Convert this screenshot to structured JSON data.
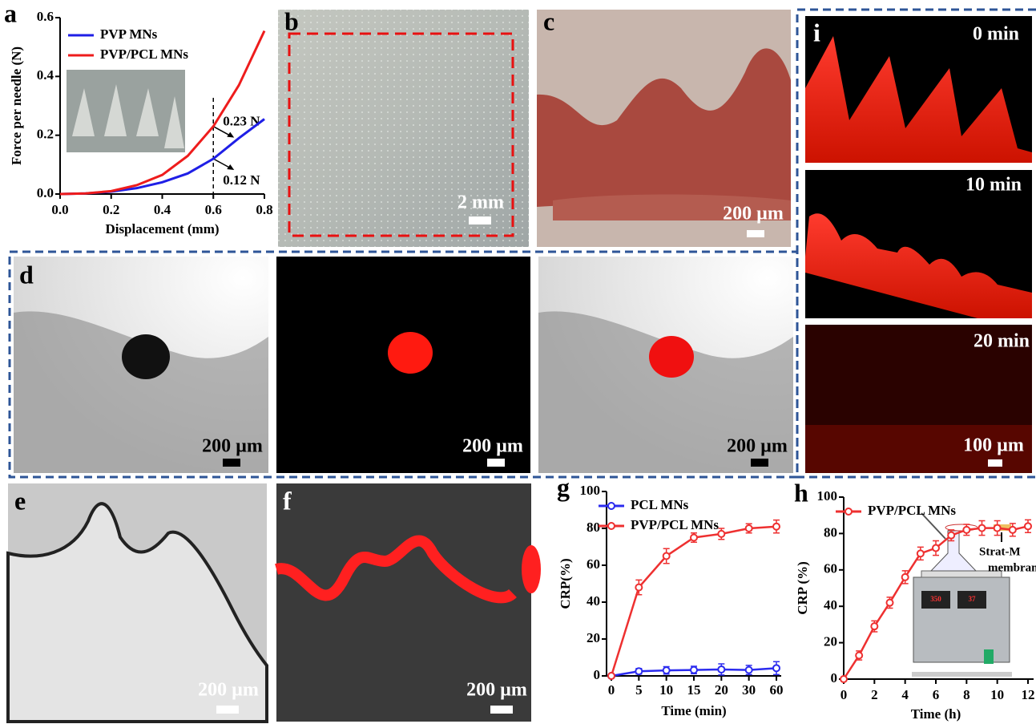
{
  "chart_data": [
    {
      "type": "line",
      "label": "a",
      "xlabel": "Displacement (mm)",
      "ylabel": "Force per needle (N)",
      "x": [
        0,
        0.1,
        0.2,
        0.3,
        0.4,
        0.5,
        0.6,
        0.7,
        0.8
      ],
      "xlim": [
        0,
        0.8
      ],
      "ylim": [
        0,
        0.6
      ],
      "xticks": [
        {
          "value": 0,
          "label": "0.0"
        },
        0.2,
        0.4,
        0.6,
        0.8
      ],
      "yticks": [
        {
          "value": 0,
          "label": "0.0"
        },
        0.2,
        0.4,
        0.6
      ],
      "series": [
        {
          "name": "PVP MNs",
          "color": "#1f1fe6",
          "values": [
            0,
            0.002,
            0.008,
            0.02,
            0.04,
            0.07,
            0.12,
            0.19,
            0.255
          ]
        },
        {
          "name": "PVP/PCL MNs",
          "color": "#ee1c1c",
          "values": [
            0,
            0.002,
            0.01,
            0.03,
            0.065,
            0.13,
            0.23,
            0.37,
            0.555
          ]
        }
      ],
      "vline": 0.6,
      "annotations": [
        {
          "text": "0.23 N",
          "y": 0.23
        },
        {
          "text": "0.12 N",
          "y": 0.12
        }
      ],
      "markers": false,
      "legend": "upper left"
    },
    {
      "type": "line",
      "label": "g",
      "xlabel": "Time (min)",
      "ylabel": "CRP(%)",
      "categories": [
        "0",
        "5",
        "10",
        "15",
        "20",
        "30",
        "60"
      ],
      "ylim": [
        0,
        100
      ],
      "yticks": [
        0,
        20,
        40,
        60,
        80,
        100
      ],
      "series": [
        {
          "name": "PCL MNs",
          "color": "#2b2bef",
          "values": [
            0,
            2.5,
            3,
            3.2,
            3.5,
            3.2,
            4.2
          ],
          "errors": [
            0,
            1.5,
            2,
            2,
            3,
            2.5,
            3.5
          ]
        },
        {
          "name": "PVP/PCL MNs",
          "color": "#ee3030",
          "values": [
            0,
            48,
            65,
            75,
            77,
            80,
            81
          ],
          "errors": [
            0,
            4,
            4,
            2.5,
            3,
            2.5,
            3.5
          ]
        }
      ],
      "markers": true,
      "legend": "upper left"
    },
    {
      "type": "line",
      "label": "h",
      "xlabel": "Time (h)",
      "ylabel": "CRP (%)",
      "x": [
        0,
        1,
        2,
        3,
        4,
        5,
        6,
        7,
        8,
        9,
        10,
        11,
        12
      ],
      "xlim": [
        0,
        12
      ],
      "ylim": [
        0,
        100
      ],
      "xticks": [
        0,
        2,
        4,
        6,
        8,
        10,
        12
      ],
      "yticks": [
        0,
        20,
        40,
        60,
        80,
        100
      ],
      "series": [
        {
          "name": "PVP/PCL MNs",
          "color": "#ee3030",
          "values": [
            0,
            13,
            29,
            42,
            56,
            69,
            72,
            79,
            82,
            83,
            83,
            82,
            84
          ],
          "errors": [
            0,
            2.5,
            3,
            3,
            3.5,
            3.5,
            4,
            3,
            3,
            4,
            4,
            3.5,
            3.5
          ]
        }
      ],
      "markers": true,
      "legend": "upper left",
      "inset": {
        "labels": [
          "Strat-M",
          "membrane"
        ],
        "displays": [
          "350",
          "37"
        ]
      }
    }
  ],
  "images": [
    {
      "label": "b",
      "scale_bar": "2 mm"
    },
    {
      "label": "c",
      "scale_bar": "200 µm"
    },
    {
      "label": "d",
      "scale_bar": "200 µm"
    },
    {
      "scale_bar": "200 µm"
    },
    {
      "scale_bar": "200 µm"
    },
    {
      "label": "e",
      "scale_bar": "200 µm"
    },
    {
      "label": "f",
      "scale_bar": "200 µm"
    },
    {
      "label": "i",
      "caption": "0 min"
    },
    {
      "caption": "10 min"
    },
    {
      "caption": "20 min",
      "scale_bar": "100 µm"
    }
  ]
}
